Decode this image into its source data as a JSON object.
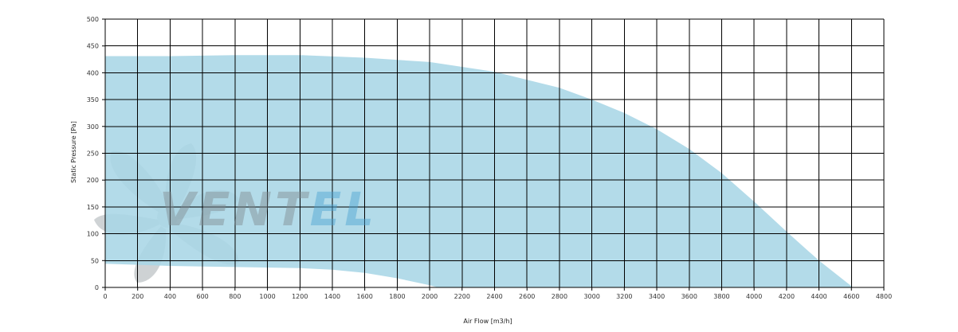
{
  "chart_data": {
    "type": "area",
    "xlabel": "Air Flow [m3/h]",
    "ylabel": "Static Pressure [Pa]",
    "xlim": [
      0,
      4800
    ],
    "ylim": [
      0,
      500
    ],
    "x_ticks": [
      0,
      200,
      400,
      600,
      800,
      1000,
      1200,
      1400,
      1600,
      1800,
      2000,
      2200,
      2400,
      2600,
      2800,
      3000,
      3200,
      3400,
      3600,
      3800,
      4000,
      4200,
      4400,
      4600,
      4800
    ],
    "y_ticks": [
      0,
      50,
      100,
      150,
      200,
      250,
      300,
      350,
      400,
      450,
      500
    ],
    "grid": true,
    "series": [
      {
        "role": "upper-boundary",
        "points": [
          [
            0,
            431
          ],
          [
            400,
            431
          ],
          [
            800,
            433
          ],
          [
            1200,
            433
          ],
          [
            1600,
            428
          ],
          [
            2000,
            420
          ],
          [
            2400,
            402
          ],
          [
            2800,
            372
          ],
          [
            3000,
            350
          ],
          [
            3200,
            325
          ],
          [
            3400,
            295
          ],
          [
            3600,
            258
          ],
          [
            3800,
            213
          ],
          [
            4000,
            160
          ],
          [
            4200,
            104
          ],
          [
            4400,
            50
          ],
          [
            4610,
            0
          ]
        ]
      },
      {
        "role": "lower-boundary",
        "points": [
          [
            0,
            44
          ],
          [
            400,
            40
          ],
          [
            800,
            38
          ],
          [
            1200,
            36
          ],
          [
            1400,
            33
          ],
          [
            1600,
            27
          ],
          [
            1800,
            17
          ],
          [
            2000,
            4
          ],
          [
            2050,
            0
          ]
        ]
      }
    ],
    "fill_color": "#a8d6e6",
    "grid_color": "#000000"
  },
  "watermark": {
    "text": "VENTEL",
    "color_dark": "#7f8a90",
    "color_accent": "#4aa3d2"
  }
}
